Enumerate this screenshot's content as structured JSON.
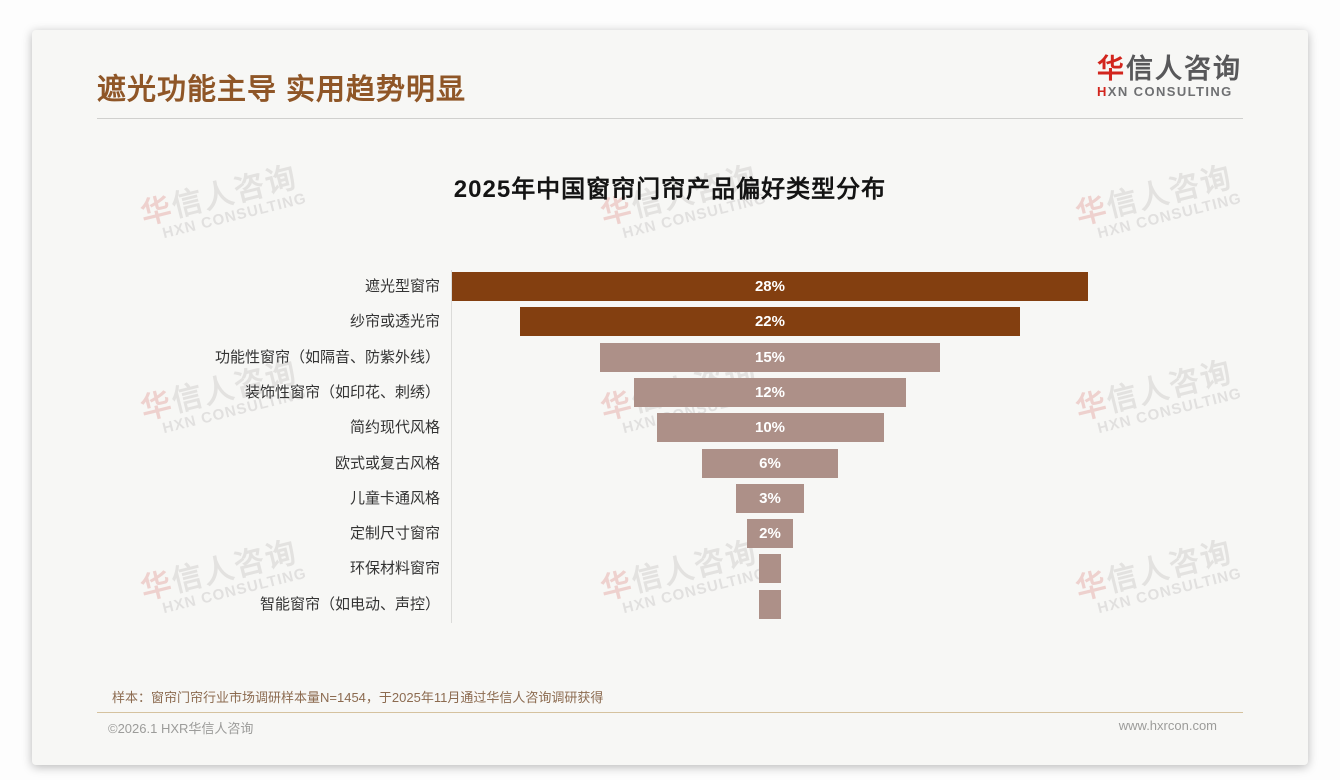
{
  "header": {
    "title": "遮光功能主导 实用趋势明显",
    "logo": {
      "cn_first": "华",
      "cn_rest": "信人咨询",
      "en_first": "H",
      "en_rest": "XN CONSULTING"
    }
  },
  "chart_data": {
    "type": "bar",
    "subtype": "horizontal-centered-funnel",
    "title": "2025年中国窗帘门帘产品偏好类型分布",
    "unit": "%",
    "categories": [
      "遮光型窗帘",
      "纱帘或透光帘",
      "功能性窗帘（如隔音、防紫外线）",
      "装饰性窗帘（如印花、刺绣）",
      "简约现代风格",
      "欧式或复古风格",
      "儿童卡通风格",
      "定制尺寸窗帘",
      "环保材料窗帘",
      "智能窗帘（如电动、声控）"
    ],
    "values": [
      28,
      22,
      15,
      12,
      10,
      6,
      3,
      2,
      1,
      1
    ],
    "labels": [
      "28%",
      "22%",
      "15%",
      "12%",
      "10%",
      "6%",
      "3%",
      "2%",
      "",
      ""
    ],
    "dark_count": 2,
    "bar_colors": {
      "dark": "#833F10",
      "light": "#AD9088"
    },
    "legend": "none",
    "grid": "off"
  },
  "watermark": {
    "cn_first": "华",
    "cn_rest": "信人咨询",
    "en": "HXN CONSULTING"
  },
  "footer": {
    "note": "样本：窗帘门帘行业市场调研样本量N=1454，于2025年11月通过华信人咨询调研获得",
    "copyright": "©2026.1 HXR华信人咨询",
    "url": "www.hxrcon.com"
  },
  "colors": {
    "header_title": "#8F5627",
    "logo_red": "#D2251D",
    "bar_dark": "#833F10",
    "bar_light": "#AD9088",
    "note_text": "#8C6B50",
    "page_bg": "#FDFDFD",
    "card_bg": "#F7F7F5"
  }
}
